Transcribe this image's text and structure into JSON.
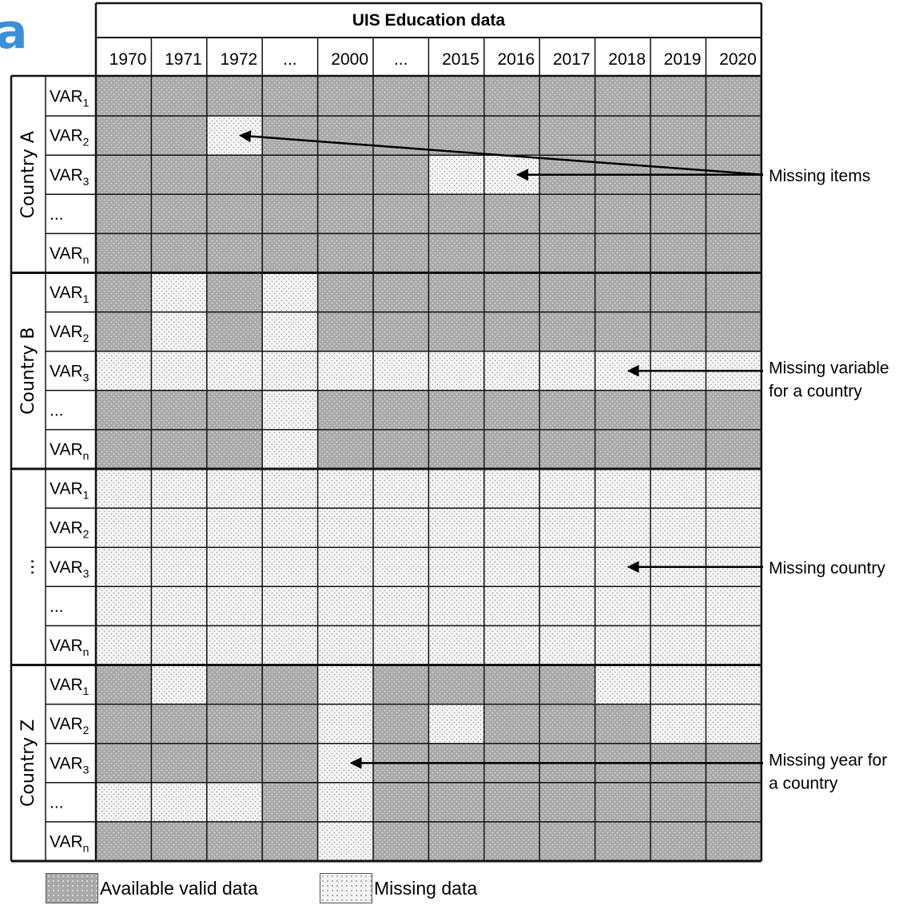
{
  "partial_title": "a",
  "header": {
    "title": "UIS Education data",
    "years": [
      "1970",
      "1971",
      "1972",
      "...",
      "2000",
      "...",
      "2015",
      "2016",
      "2017",
      "2018",
      "2019",
      "2020"
    ]
  },
  "colors": {
    "available": "#a9a9a9",
    "missing": "#f3f3f3",
    "grid": "#111111"
  },
  "groups": [
    {
      "label": "Country A",
      "rows": [
        {
          "name": "VAR",
          "sub": "1",
          "cells": [
            1,
            1,
            1,
            1,
            1,
            1,
            1,
            1,
            1,
            1,
            1,
            1
          ]
        },
        {
          "name": "VAR",
          "sub": "2",
          "cells": [
            1,
            1,
            0,
            1,
            1,
            1,
            1,
            1,
            1,
            1,
            1,
            1
          ]
        },
        {
          "name": "VAR",
          "sub": "3",
          "cells": [
            1,
            1,
            1,
            1,
            1,
            1,
            0,
            0,
            1,
            1,
            1,
            1
          ]
        },
        {
          "name": "...",
          "sub": "",
          "cells": [
            1,
            1,
            1,
            1,
            1,
            1,
            1,
            1,
            1,
            1,
            1,
            1
          ]
        },
        {
          "name": "VAR",
          "sub": "n",
          "cells": [
            1,
            1,
            1,
            1,
            1,
            1,
            1,
            1,
            1,
            1,
            1,
            1
          ]
        }
      ]
    },
    {
      "label": "Country B",
      "rows": [
        {
          "name": "VAR",
          "sub": "1",
          "cells": [
            1,
            0,
            1,
            0,
            1,
            1,
            1,
            1,
            1,
            1,
            1,
            1
          ]
        },
        {
          "name": "VAR",
          "sub": "2",
          "cells": [
            1,
            0,
            1,
            0,
            1,
            1,
            1,
            1,
            1,
            1,
            1,
            1
          ]
        },
        {
          "name": "VAR",
          "sub": "3",
          "cells": [
            0,
            0,
            0,
            0,
            0,
            0,
            0,
            0,
            0,
            0,
            0,
            0
          ]
        },
        {
          "name": "...",
          "sub": "",
          "cells": [
            1,
            1,
            1,
            0,
            1,
            1,
            1,
            1,
            1,
            1,
            1,
            1
          ]
        },
        {
          "name": "VAR",
          "sub": "n",
          "cells": [
            1,
            1,
            1,
            0,
            1,
            1,
            1,
            1,
            1,
            1,
            1,
            1
          ]
        }
      ]
    },
    {
      "label": "...",
      "rows": [
        {
          "name": "VAR",
          "sub": "1",
          "cells": [
            0,
            0,
            0,
            0,
            0,
            0,
            0,
            0,
            0,
            0,
            0,
            0
          ]
        },
        {
          "name": "VAR",
          "sub": "2",
          "cells": [
            0,
            0,
            0,
            0,
            0,
            0,
            0,
            0,
            0,
            0,
            0,
            0
          ]
        },
        {
          "name": "VAR",
          "sub": "3",
          "cells": [
            0,
            0,
            0,
            0,
            0,
            0,
            0,
            0,
            0,
            0,
            0,
            0
          ]
        },
        {
          "name": "...",
          "sub": "",
          "cells": [
            0,
            0,
            0,
            0,
            0,
            0,
            0,
            0,
            0,
            0,
            0,
            0
          ]
        },
        {
          "name": "VAR",
          "sub": "n",
          "cells": [
            0,
            0,
            0,
            0,
            0,
            0,
            0,
            0,
            0,
            0,
            0,
            0
          ]
        }
      ]
    },
    {
      "label": "Country Z",
      "rows": [
        {
          "name": "VAR",
          "sub": "1",
          "cells": [
            1,
            0,
            1,
            1,
            0,
            1,
            1,
            1,
            1,
            0,
            0,
            0
          ]
        },
        {
          "name": "VAR",
          "sub": "2",
          "cells": [
            1,
            1,
            1,
            1,
            0,
            1,
            0,
            1,
            1,
            1,
            0,
            0
          ]
        },
        {
          "name": "VAR",
          "sub": "3",
          "cells": [
            1,
            1,
            1,
            1,
            0,
            1,
            1,
            1,
            1,
            1,
            1,
            1
          ]
        },
        {
          "name": "...",
          "sub": "",
          "cells": [
            0,
            0,
            0,
            1,
            0,
            1,
            1,
            1,
            1,
            1,
            1,
            1
          ]
        },
        {
          "name": "VAR",
          "sub": "n",
          "cells": [
            1,
            1,
            1,
            1,
            0,
            1,
            1,
            1,
            1,
            1,
            1,
            1
          ]
        }
      ]
    }
  ],
  "annotations": [
    {
      "lines": [
        "Missing items"
      ],
      "targets": [
        {
          "group": 0,
          "row": 1,
          "col": 2
        },
        {
          "group": 0,
          "row": 2,
          "col": 7
        }
      ]
    },
    {
      "lines": [
        "Missing variable",
        "for a country"
      ],
      "targets": [
        {
          "group": 1,
          "row": 2,
          "col": 9
        }
      ]
    },
    {
      "lines": [
        "Missing country"
      ],
      "targets": [
        {
          "group": 2,
          "row": 2,
          "col": 9
        }
      ]
    },
    {
      "lines": [
        "Missing year for",
        "a country"
      ],
      "targets": [
        {
          "group": 3,
          "row": 2,
          "col": 4
        }
      ]
    }
  ],
  "legend": {
    "available_label": "Available valid data",
    "missing_label": "Missing data"
  }
}
